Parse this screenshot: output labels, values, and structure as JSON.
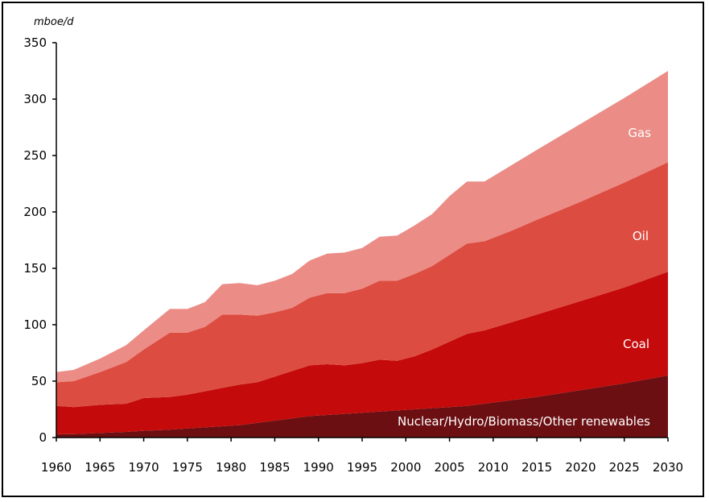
{
  "chart_data": {
    "type": "area",
    "stacked": true,
    "ylabel": "mboe/d",
    "ylim": [
      0,
      350
    ],
    "xlim": [
      1960,
      2030
    ],
    "yticks": [
      0,
      50,
      100,
      150,
      200,
      250,
      300,
      350
    ],
    "xticks": [
      1960,
      1965,
      1970,
      1975,
      1980,
      1985,
      1990,
      1995,
      2000,
      2005,
      2010,
      2015,
      2020,
      2025,
      2030
    ],
    "grid": false,
    "legend": "inline labels",
    "x": [
      1960,
      1962,
      1965,
      1968,
      1970,
      1973,
      1975,
      1977,
      1979,
      1981,
      1983,
      1985,
      1987,
      1989,
      1991,
      1993,
      1995,
      1997,
      1999,
      2001,
      2003,
      2005,
      2007,
      2009,
      2012,
      2015,
      2020,
      2025,
      2030
    ],
    "series": [
      {
        "name": "Nuclear/Hydro/Biomass/Other renewables",
        "color": "#6b0f12",
        "values": [
          3,
          3,
          4,
          5,
          6,
          7,
          8,
          9,
          10,
          11,
          13,
          15,
          17,
          19,
          20,
          21,
          22,
          23,
          24,
          25,
          26,
          27,
          28,
          30,
          33,
          36,
          42,
          48,
          55
        ]
      },
      {
        "name": "Coal",
        "color": "#c40a0a",
        "values": [
          25,
          24,
          25,
          25,
          29,
          29,
          30,
          32,
          34,
          36,
          36,
          39,
          42,
          45,
          45,
          43,
          44,
          46,
          44,
          47,
          52,
          58,
          64,
          65,
          69,
          73,
          79,
          85,
          92
        ]
      },
      {
        "name": "Oil",
        "color": "#dd4c40",
        "values": [
          21,
          23,
          29,
          37,
          43,
          57,
          55,
          57,
          65,
          62,
          59,
          57,
          56,
          60,
          63,
          64,
          66,
          70,
          71,
          73,
          74,
          77,
          80,
          79,
          81,
          84,
          88,
          93,
          97
        ]
      },
      {
        "name": "Gas",
        "color": "#eb8c86",
        "values": [
          9,
          10,
          12,
          15,
          17,
          21,
          21,
          22,
          27,
          28,
          27,
          28,
          30,
          33,
          35,
          36,
          36,
          39,
          40,
          43,
          46,
          52,
          55,
          53,
          58,
          62,
          69,
          75,
          81
        ]
      }
    ]
  }
}
